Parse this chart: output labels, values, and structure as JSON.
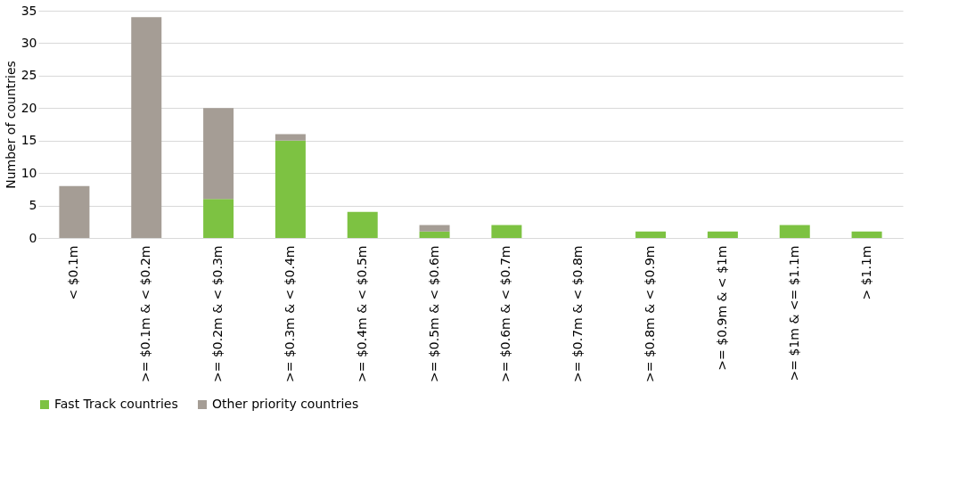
{
  "chart_data": {
    "type": "bar",
    "stacked": true,
    "ylabel": "Number of countries",
    "categories": [
      "< $0.1m",
      ">= $0.1m & < $0.2m",
      ">= $0.2m & < $0.3m",
      ">= $0.3m & < $0.4m",
      ">= $0.4m & < $0.5m",
      ">= $0.5m & < $0.6m",
      ">= $0.6m & < $0.7m",
      ">= $0.7m & < $0.8m",
      ">= $0.8m & < $0.9m",
      ">= $0.9m & < $1m",
      ">= $1m & <= $1.1m",
      "> $1.1m"
    ],
    "series": [
      {
        "name": "Fast Track countries",
        "color": "#7dc242",
        "values": [
          0,
          0,
          6,
          15,
          4,
          1,
          2,
          0,
          1,
          1,
          2,
          1
        ]
      },
      {
        "name": "Other priority countries",
        "color": "#a59d95",
        "values": [
          8,
          34,
          14,
          1,
          0,
          1,
          0,
          0,
          0,
          0,
          0,
          0
        ]
      }
    ],
    "ylim": [
      0,
      35
    ],
    "yticks": [
      0,
      5,
      10,
      15,
      20,
      25,
      30,
      35
    ],
    "grid": "y",
    "legend": "bottom"
  }
}
